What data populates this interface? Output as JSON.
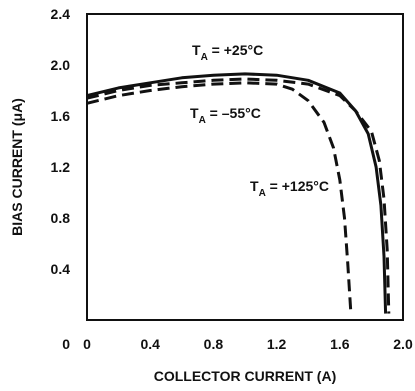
{
  "chart_data": {
    "type": "line",
    "xlabel": "COLLECTOR CURRENT (A)",
    "ylabel": "BIAS CURRENT (μA)",
    "xlim": [
      0,
      2.0
    ],
    "ylim": [
      0,
      2.4
    ],
    "x_ticks": [
      "0",
      "0.4",
      "0.8",
      "1.2",
      "1.6",
      "2.0"
    ],
    "y_ticks": [
      "0",
      "0.4",
      "0.8",
      "1.2",
      "1.6",
      "2.0",
      "2.4"
    ],
    "grid": false,
    "series": [
      {
        "name": "T_A = +25°C",
        "label_main": "T",
        "label_sub": "A",
        "label_rest": " = +25°C",
        "style": "solid",
        "points": [
          [
            0,
            1.76
          ],
          [
            0.2,
            1.82
          ],
          [
            0.4,
            1.86
          ],
          [
            0.6,
            1.9
          ],
          [
            0.8,
            1.92
          ],
          [
            1.0,
            1.93
          ],
          [
            1.2,
            1.92
          ],
          [
            1.4,
            1.88
          ],
          [
            1.6,
            1.78
          ],
          [
            1.7,
            1.64
          ],
          [
            1.78,
            1.46
          ],
          [
            1.83,
            1.2
          ],
          [
            1.86,
            0.9
          ],
          [
            1.88,
            0.5
          ],
          [
            1.89,
            0.05
          ]
        ]
      },
      {
        "name": "T_A = –55°C",
        "label_main": "T",
        "label_sub": "A",
        "label_rest": " = –55°C",
        "style": "dashed",
        "points": [
          [
            0,
            1.74
          ],
          [
            0.2,
            1.8
          ],
          [
            0.4,
            1.84
          ],
          [
            0.6,
            1.86
          ],
          [
            0.8,
            1.88
          ],
          [
            1.0,
            1.89
          ],
          [
            1.2,
            1.88
          ],
          [
            1.4,
            1.85
          ],
          [
            1.6,
            1.76
          ],
          [
            1.7,
            1.64
          ],
          [
            1.8,
            1.48
          ],
          [
            1.85,
            1.25
          ],
          [
            1.88,
            0.95
          ],
          [
            1.9,
            0.55
          ],
          [
            1.91,
            0.05
          ]
        ]
      },
      {
        "name": "T_A = +125°C",
        "label_main": "T",
        "label_sub": "A",
        "label_rest": " = +125°C",
        "style": "dashed",
        "points": [
          [
            0,
            1.7
          ],
          [
            0.2,
            1.76
          ],
          [
            0.4,
            1.8
          ],
          [
            0.6,
            1.83
          ],
          [
            0.8,
            1.85
          ],
          [
            1.0,
            1.86
          ],
          [
            1.2,
            1.85
          ],
          [
            1.3,
            1.81
          ],
          [
            1.4,
            1.72
          ],
          [
            1.5,
            1.55
          ],
          [
            1.56,
            1.35
          ],
          [
            1.6,
            1.1
          ],
          [
            1.63,
            0.8
          ],
          [
            1.65,
            0.45
          ],
          [
            1.67,
            0.05
          ]
        ]
      }
    ]
  }
}
